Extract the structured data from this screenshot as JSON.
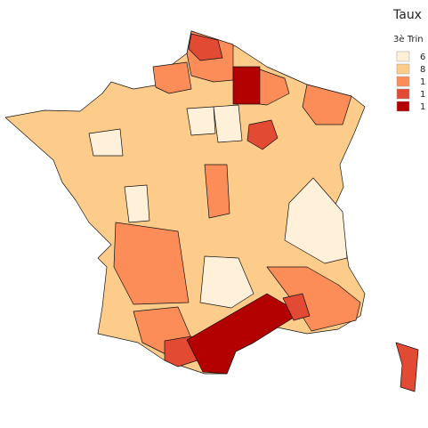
{
  "legend": {
    "title": "Taux",
    "subtitle": "3è Trin",
    "items": [
      {
        "label": "6",
        "color": "#fef0d9"
      },
      {
        "label": "8",
        "color": "#fdcc8a"
      },
      {
        "label": "1",
        "color": "#fc8d59"
      },
      {
        "label": "1",
        "color": "#e34a33"
      },
      {
        "label": "1",
        "color": "#b30000"
      }
    ]
  }
}
